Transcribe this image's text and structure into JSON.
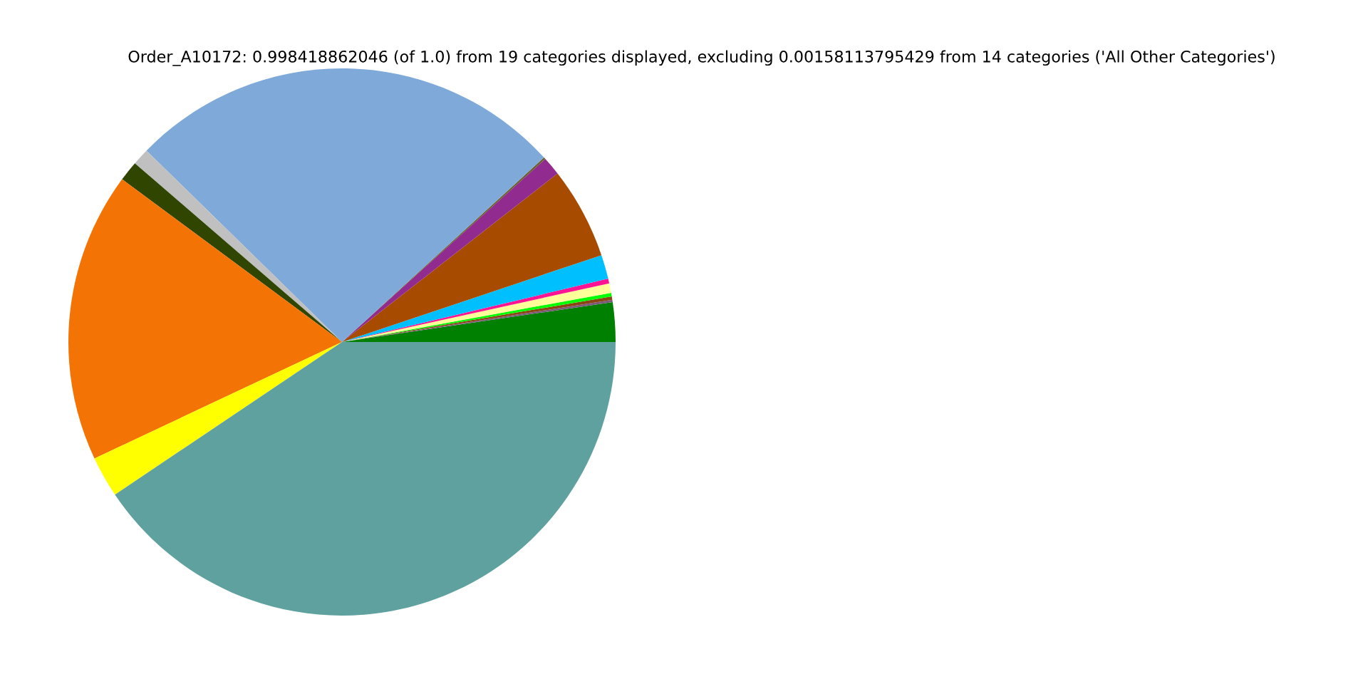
{
  "chart_data": {
    "type": "pie",
    "title": "Order_A10172: 0.998418862046 (of 1.0) from 19 categories displayed, excluding 0.00158113795429 from 14 categories ('All Other Categories')",
    "categories": [
      null,
      null,
      null,
      null,
      null,
      null,
      null,
      null,
      null,
      null,
      null,
      null,
      null,
      null,
      null,
      null
    ],
    "values": [
      2.33,
      0.14,
      0.19,
      0.22,
      0.56,
      0.28,
      1.42,
      5.42,
      1.11,
      0.11,
      25.89,
      1.0,
      1.19,
      17.14,
      2.42,
      40.58
    ],
    "colors": [
      "#008000",
      "#7a5a7a",
      "#8b4513",
      "#00ff00",
      "#ffff99",
      "#ff1493",
      "#00bfff",
      "#a64b00",
      "#922b8f",
      "#6b5e28",
      "#7ea9d9",
      "#c0c0c0",
      "#2f4500",
      "#f47305",
      "#ffff00",
      "#5ea19e"
    ],
    "legend": false
  }
}
